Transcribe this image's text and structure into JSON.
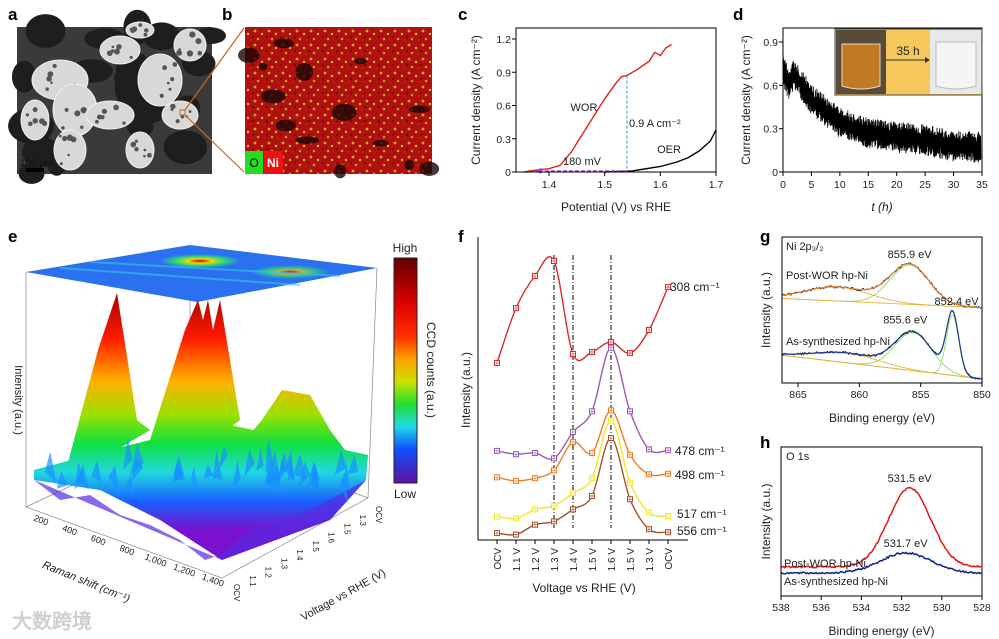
{
  "figure": {
    "panel_labels": [
      "a",
      "b",
      "c",
      "d",
      "e",
      "f",
      "g",
      "h"
    ],
    "watermark": "大数跨境"
  },
  "panel_a": {
    "scale_bar": "100 μm"
  },
  "panel_b": {
    "legend": [
      "O",
      "Ni"
    ],
    "legend_colors": [
      "#22dd22",
      "#ee1111"
    ]
  },
  "chart_data": [
    {
      "panel": "c",
      "type": "line",
      "xlabel": "Potential (V) vs RHE",
      "ylabel": "Current density (A cm⁻²)",
      "xlim": [
        1.34,
        1.7
      ],
      "ylim": [
        0,
        1.3
      ],
      "xticks": [
        1.4,
        1.5,
        1.6,
        1.7
      ],
      "xtick_labels": [
        "1.4",
        "1.5",
        "1.6",
        "1.7"
      ],
      "yticks": [
        0,
        0.3,
        0.6,
        0.9,
        1.2
      ],
      "ytick_labels": [
        "0",
        "0.3",
        "0.6",
        "0.9",
        "1.2"
      ],
      "series": [
        {
          "name": "WOR",
          "color": "#e02020",
          "x": [
            1.355,
            1.38,
            1.4,
            1.42,
            1.44,
            1.46,
            1.48,
            1.5,
            1.52,
            1.53,
            1.54,
            1.56,
            1.58,
            1.59,
            1.6,
            1.61,
            1.62
          ],
          "y": [
            0.0,
            0.02,
            0.03,
            0.06,
            0.18,
            0.34,
            0.5,
            0.66,
            0.8,
            0.86,
            0.87,
            0.93,
            1.0,
            1.08,
            1.05,
            1.12,
            1.15
          ]
        },
        {
          "name": "OER",
          "color": "#000000",
          "x": [
            1.5,
            1.55,
            1.6,
            1.63,
            1.65,
            1.67,
            1.69,
            1.7
          ],
          "y": [
            0.0,
            0.01,
            0.05,
            0.09,
            0.13,
            0.19,
            0.28,
            0.38
          ]
        }
      ],
      "annotations": {
        "current": "0.9 A cm⁻²",
        "current_at": [
          1.54,
          0.87
        ],
        "overpotential": "180 mV",
        "overpotential_from": [
          1.54,
          0.01
        ],
        "overpotential_to": [
          1.375,
          0.01
        ]
      }
    },
    {
      "panel": "d",
      "type": "line",
      "xlabel": "t (h)",
      "ylabel": "Current density (A cm⁻²)",
      "xlim": [
        0,
        35
      ],
      "ylim": [
        0,
        1.0
      ],
      "xticks": [
        0,
        5,
        10,
        15,
        20,
        25,
        30,
        35
      ],
      "xtick_labels": [
        "0",
        "5",
        "10",
        "15",
        "20",
        "25",
        "30",
        "35"
      ],
      "yticks": [
        0,
        0.3,
        0.6,
        0.9
      ],
      "ytick_labels": [
        "0",
        "0.3",
        "0.6",
        "0.9"
      ],
      "series": [
        {
          "name": "stability",
          "color": "#000000",
          "x": [
            0,
            1,
            2,
            5,
            10,
            15,
            20,
            25,
            30,
            35
          ],
          "y": [
            0.72,
            0.6,
            0.68,
            0.5,
            0.34,
            0.27,
            0.24,
            0.22,
            0.18,
            0.17
          ],
          "noise_amplitude": 0.09
        }
      ],
      "inset": {
        "label": "35 h"
      }
    },
    {
      "panel": "e",
      "type": "heatmap",
      "xlabel": "Raman shift (cm⁻¹)",
      "ylabel": "Voltage vs RHE (V)",
      "zlabel": "Intensity (a.u.)",
      "xtick_labels": [
        "200",
        "400",
        "600",
        "800",
        "1,000",
        "1,200",
        "1,400"
      ],
      "ytick_labels": [
        "OCV",
        "1.1",
        "1.2",
        "1.3",
        "1.4",
        "1.5",
        "1.6",
        "1.5",
        "1.3",
        "OCV"
      ],
      "colorbar": {
        "label": "CCD counts (a.u.)",
        "high": "High",
        "low": "Low"
      }
    },
    {
      "panel": "f",
      "type": "line",
      "xlabel": "Voltage vs RHE (V)",
      "ylabel": "Intensity (a.u.)",
      "categories": [
        "OCV",
        "1.1 V",
        "1.2 V",
        "1.3 V",
        "1.4 V",
        "1.5 V",
        "1.6 V",
        "1.5 V",
        "1.3 V",
        "OCV"
      ],
      "ylim": [
        0,
        100
      ],
      "vlines_at": [
        "1.3 V",
        "1.4 V",
        "1.6 V"
      ],
      "series": [
        {
          "name": "308 cm⁻¹",
          "color": "#d42a2a",
          "values": [
            59,
            77.3,
            88,
            93,
            62,
            62.7,
            66,
            62.3,
            70,
            84.3
          ]
        },
        {
          "name": "478 cm⁻¹",
          "color": "#9b59b6",
          "values": [
            29.7,
            28.6,
            29,
            27.2,
            36,
            42.9,
            64.1,
            42.9,
            30.2,
            29.9
          ]
        },
        {
          "name": "498 cm⁻¹",
          "color": "#f07d1e",
          "values": [
            20.9,
            19.7,
            20.6,
            23.2,
            32.7,
            29,
            43.2,
            28.4,
            21.9,
            22.1
          ]
        },
        {
          "name": "517 cm⁻¹",
          "color": "#f2e62a",
          "values": [
            7.8,
            7.2,
            10.2,
            11.4,
            15.6,
            20.6,
            39.8,
            19.1,
            9.1,
            8
          ]
        },
        {
          "name": "556 cm⁻¹",
          "color": "#a0522d",
          "values": [
            2.3,
            1.8,
            5.1,
            6.2,
            10.2,
            14.7,
            34,
            13.6,
            3.6,
            2.6
          ]
        }
      ]
    },
    {
      "panel": "g",
      "type": "line",
      "title": "Ni 2p₃/₂",
      "xlabel": "Binding energy (eV)",
      "ylabel": "Intensity (a.u.)",
      "xlim": [
        866.3,
        850
      ],
      "ylim": [
        0,
        100
      ],
      "xticks": [
        865,
        860,
        855,
        850
      ],
      "xtick_labels": [
        "865",
        "860",
        "855",
        "850"
      ],
      "series": [
        {
          "name": "Post-WOR hp-Ni",
          "color": "#e07a30",
          "baseline": [
            58,
            52
          ],
          "peaks": [
            {
              "center": 855.9,
              "height": 28,
              "width": 1.6,
              "label": "855.9 eV"
            },
            {
              "center": 861.8,
              "height": 10,
              "width": 2.6,
              "label": ""
            }
          ]
        },
        {
          "name": "As-synthesized hp-Ni",
          "color": "#1f3c8c",
          "baseline": [
            17,
            1.5
          ],
          "peaks": [
            {
              "center": 855.6,
              "height": 27,
              "width": 1.5,
              "label": "855.6 eV"
            },
            {
              "center": 852.4,
              "height": 43,
              "width": 0.5,
              "label": "852.4 eV"
            },
            {
              "center": 861.0,
              "height": 7,
              "width": 2.6,
              "label": ""
            }
          ]
        }
      ],
      "component_colors": {
        "peak": "#8fdc5a",
        "background": "#e8b040"
      }
    },
    {
      "panel": "h",
      "type": "line",
      "title": "O 1s",
      "xlabel": "Binding energy (eV)",
      "ylabel": "Intensity (a.u.)",
      "xlim": [
        538,
        528
      ],
      "ylim": [
        0,
        100
      ],
      "xticks": [
        538,
        536,
        534,
        532,
        530,
        528
      ],
      "xtick_labels": [
        "538",
        "536",
        "534",
        "532",
        "530",
        "528"
      ],
      "series": [
        {
          "name": "Post-WOR hp-Ni",
          "color": "#e01818",
          "baseline": 19.5,
          "peaks": [
            {
              "center": 531.6,
              "height": 53,
              "width": 1.05,
              "label": "531.5 eV"
            }
          ]
        },
        {
          "name": "As-synthesized hp-Ni",
          "color": "#10208c",
          "baseline": 15.4,
          "peaks": [
            {
              "center": 531.8,
              "height": 13.5,
              "width": 1.25,
              "label": "531.7 eV"
            }
          ]
        }
      ]
    }
  ]
}
